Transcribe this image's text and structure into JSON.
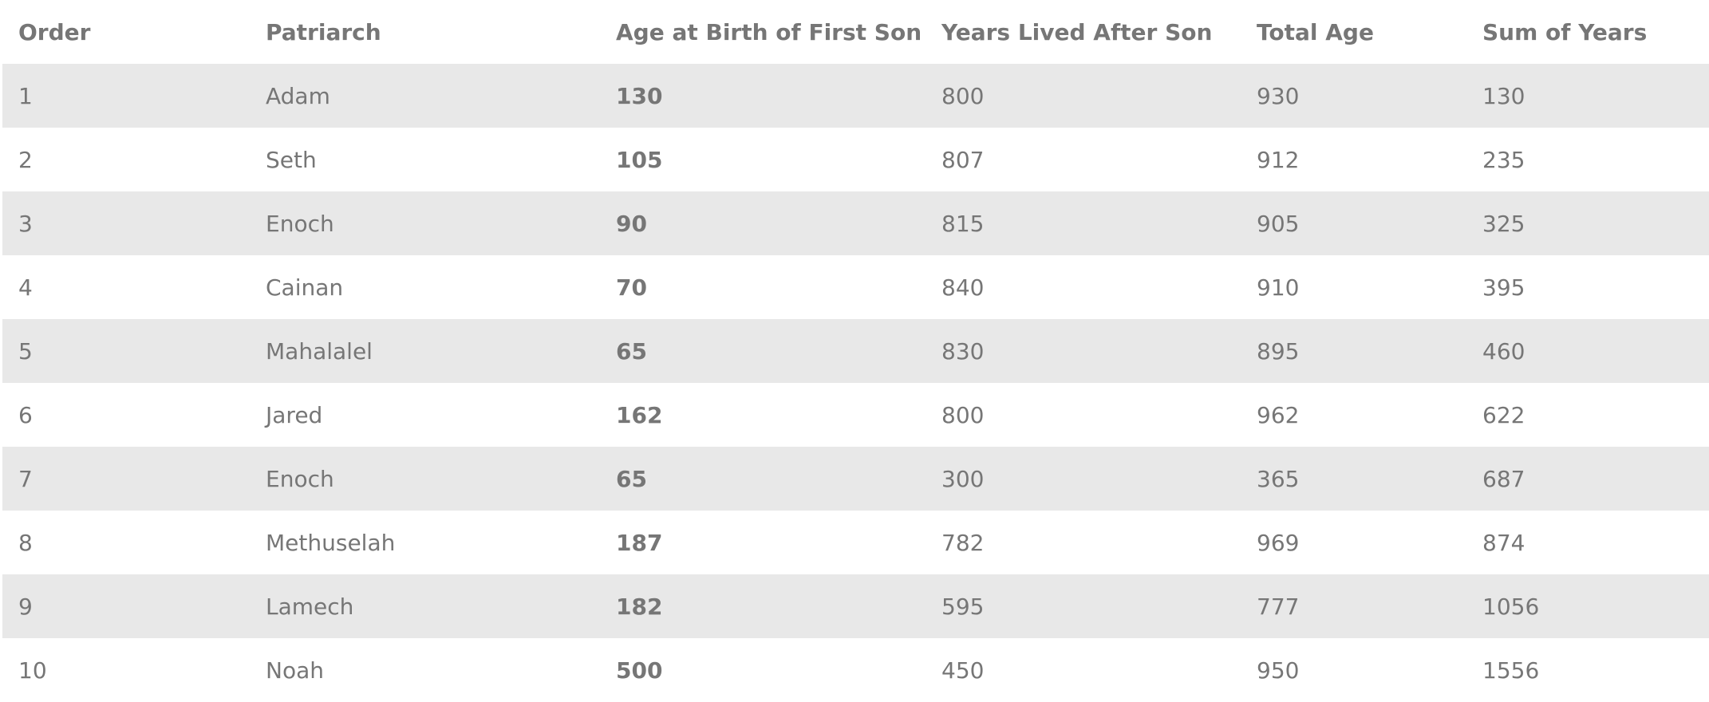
{
  "table": {
    "headers": [
      "Order",
      "Patriarch",
      "Age at Birth of First Son",
      "Years Lived After Son",
      "Total Age",
      "Sum of Years"
    ],
    "rows": [
      [
        "1",
        "Adam",
        "130",
        "800",
        "930",
        "130"
      ],
      [
        "2",
        "Seth",
        "105",
        "807",
        "912",
        "235"
      ],
      [
        "3",
        "Enoch",
        "90",
        "815",
        "905",
        "325"
      ],
      [
        "4",
        "Cainan",
        "70",
        "840",
        "910",
        "395"
      ],
      [
        "5",
        "Mahalalel",
        "65",
        "830",
        "895",
        "460"
      ],
      [
        "6",
        "Jared",
        "162",
        "800",
        "962",
        "622"
      ],
      [
        "7",
        "Enoch",
        "65",
        "300",
        "365",
        "687"
      ],
      [
        "8",
        "Methuselah",
        "187",
        "782",
        "969",
        "874"
      ],
      [
        "9",
        "Lamech",
        "182",
        "595",
        "777",
        "1056"
      ],
      [
        "10",
        "Noah",
        "500",
        "450",
        "950",
        "1556"
      ]
    ]
  }
}
